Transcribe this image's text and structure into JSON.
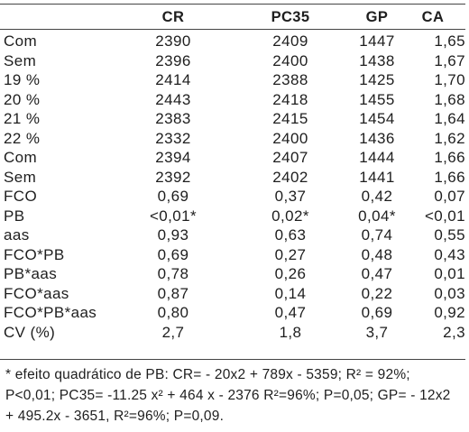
{
  "table": {
    "headers": [
      "",
      "CR",
      "PC35",
      "GP",
      "CA"
    ],
    "rows": [
      [
        "Com",
        "2390",
        "2409",
        "1447",
        "1,65"
      ],
      [
        "Sem",
        "2396",
        "2400",
        "1438",
        "1,67"
      ],
      [
        "19 %",
        "2414",
        "2388",
        "1425",
        "1,70"
      ],
      [
        "20 %",
        "2443",
        "2418",
        "1455",
        "1,68"
      ],
      [
        "21 %",
        "2383",
        "2415",
        "1454",
        "1,64"
      ],
      [
        "22 %",
        "2332",
        "2400",
        "1436",
        "1,62"
      ],
      [
        "Com",
        "2394",
        "2407",
        "1444",
        "1,66"
      ],
      [
        "Sem",
        "2392",
        "2402",
        "1441",
        "1,66"
      ],
      [
        "FCO",
        "0,69",
        "0,37",
        "0,42",
        "0,07"
      ],
      [
        "PB",
        "<0,01*",
        "0,02*",
        "0,04*",
        "<0,01"
      ],
      [
        "aas",
        "0,93",
        "0,63",
        "0,74",
        "0,55"
      ],
      [
        "FCO*PB",
        "0,69",
        "0,27",
        "0,48",
        "0,43"
      ],
      [
        "PB*aas",
        "0,78",
        "0,26",
        "0,47",
        "0,01"
      ],
      [
        "FCO*aas",
        "0,87",
        "0,14",
        "0,22",
        "0,03"
      ],
      [
        "FCO*PB*aas",
        "0,80",
        "0,47",
        "0,69",
        "0,92"
      ],
      [
        "CV (%)",
        "2,7",
        "1,8",
        "3,7",
        "2,3"
      ]
    ]
  },
  "footnote": "* efeito quadrático de PB: CR= - 20x2 + 789x - 5359; R² = 92%; P<0,01; PC35= -11.25 x² + 464 x - 2376 R²=96%; P=0,05; GP= - 12x2 + 495.2x - 3651, R²=96%; P=0,09."
}
